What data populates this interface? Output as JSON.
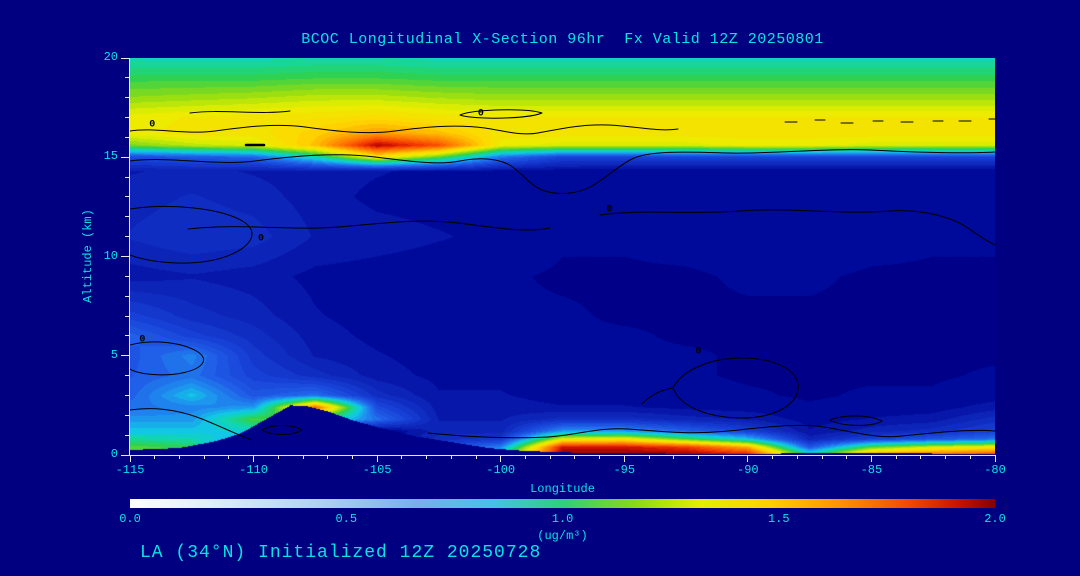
{
  "title": "BCOC Longitudinal X-Section 96hr  Fx Valid 12Z 20250801",
  "footer": "LA (34°N) Initialized 12Z 20250728",
  "axes": {
    "x": {
      "label": "Longitude",
      "ticks": [
        "-115",
        "-110",
        "-105",
        "-100",
        "-95",
        "-90",
        "-85",
        "-80"
      ],
      "minor_step": 1
    },
    "y": {
      "label": "Altitude (km)",
      "ticks": [
        "0",
        "5",
        "10",
        "15",
        "20"
      ],
      "minor_step": 1
    }
  },
  "colorbar": {
    "ticks": [
      "0.0",
      "0.5",
      "1.0",
      "1.5",
      "2.0"
    ],
    "unit": "(ug/m³)",
    "gradient": [
      [
        0,
        "#ffffff"
      ],
      [
        0.1,
        "#dcedfa"
      ],
      [
        0.22,
        "#aed2f2"
      ],
      [
        0.33,
        "#78b1e8"
      ],
      [
        0.42,
        "#46c2e4"
      ],
      [
        0.5,
        "#2fcf7c"
      ],
      [
        0.58,
        "#83da16"
      ],
      [
        0.66,
        "#e6ee00"
      ],
      [
        0.74,
        "#ffcf00"
      ],
      [
        0.82,
        "#ff9300"
      ],
      [
        0.9,
        "#f24a00"
      ],
      [
        0.96,
        "#c41200"
      ],
      [
        1,
        "#860000"
      ]
    ]
  },
  "colors": {
    "background": "#000080",
    "text": "#0ae2e2",
    "axis": "#e8e8e8",
    "contour": "#000000"
  },
  "chart_data": {
    "type": "heatmap",
    "title": "BCOC Longitudinal X-Section 96hr  Fx Valid 12Z 20250801",
    "xlabel": "Longitude",
    "ylabel": "Altitude (km)",
    "xlim": [
      -115,
      -80
    ],
    "ylim": [
      0,
      20
    ],
    "clim": [
      0,
      2
    ],
    "units": "ug/m³",
    "quantize": 0.05,
    "contour_level_label": "0",
    "colormap": [
      [
        0,
        "#000089"
      ],
      [
        0.05,
        "#000a9a"
      ],
      [
        0.15,
        "#0d24b8"
      ],
      [
        0.3,
        "#1740d6"
      ],
      [
        0.45,
        "#2060e8"
      ],
      [
        0.58,
        "#1f8ef0"
      ],
      [
        0.7,
        "#12c6e6"
      ],
      [
        0.82,
        "#10d8ac"
      ],
      [
        0.95,
        "#2ed152"
      ],
      [
        1.08,
        "#8fdc14"
      ],
      [
        1.22,
        "#e8ef00"
      ],
      [
        1.38,
        "#ffd800"
      ],
      [
        1.52,
        "#ffa400"
      ],
      [
        1.66,
        "#ff7000"
      ],
      [
        1.8,
        "#f23800"
      ],
      [
        1.9,
        "#cc0f00"
      ],
      [
        2,
        "#8c0000"
      ]
    ],
    "terrain": {
      "lon": [
        -115,
        -113,
        -111.5,
        -110.5,
        -109.5,
        -108.5,
        -107.8,
        -107,
        -106,
        -105,
        -103.5,
        -102,
        -100.5,
        -99,
        -97,
        -94,
        -91,
        -88,
        -86,
        -83,
        -80
      ],
      "height": [
        0.25,
        0.35,
        0.7,
        1.1,
        1.8,
        2.5,
        2.45,
        2.2,
        1.75,
        1.4,
        0.95,
        0.65,
        0.35,
        0.2,
        0.12,
        0.08,
        0.06,
        0.08,
        0.1,
        0.08,
        0.05
      ]
    },
    "grid": {
      "lon": [
        -115,
        -112.5,
        -110,
        -107.5,
        -105,
        -102.5,
        -100,
        -97.5,
        -95,
        -92.5,
        -90,
        -87.5,
        -85,
        -82.5,
        -80
      ],
      "alt": [
        0,
        0.4,
        0.8,
        1.2,
        1.8,
        2.4,
        3,
        4,
        5,
        6,
        7,
        9,
        11,
        13,
        14.3,
        15,
        15.6,
        16.2,
        17,
        18,
        19,
        20
      ],
      "values": [
        [
          0.95,
          1.0,
          0.0,
          0.0,
          0.0,
          0.45,
          0.85,
          2.0,
          2.0,
          2.0,
          1.9,
          0.9,
          1.6,
          1.7,
          1.8
        ],
        [
          1.0,
          0.95,
          0.0,
          0.0,
          0.0,
          0.3,
          0.55,
          1.9,
          1.9,
          1.8,
          1.5,
          0.4,
          1.0,
          1.2,
          1.3
        ],
        [
          0.85,
          0.8,
          0.6,
          0.0,
          0.0,
          0.2,
          0.25,
          1.25,
          1.3,
          1.0,
          0.7,
          0.15,
          0.3,
          0.4,
          0.5
        ],
        [
          0.7,
          0.7,
          0.75,
          0.0,
          0.0,
          0.15,
          0.15,
          0.6,
          0.6,
          0.45,
          0.3,
          0.08,
          0.15,
          0.2,
          0.3
        ],
        [
          0.6,
          0.6,
          1.0,
          0.9,
          0.5,
          0.12,
          0.12,
          0.2,
          0.2,
          0.15,
          0.12,
          0.05,
          0.08,
          0.1,
          0.2
        ],
        [
          0.5,
          0.55,
          0.6,
          1.7,
          0.35,
          0.1,
          0.1,
          0.08,
          0.08,
          0.06,
          0.05,
          0.03,
          0.04,
          0.05,
          0.1
        ],
        [
          0.45,
          0.7,
          0.4,
          0.5,
          0.2,
          0.08,
          0.08,
          0.05,
          0.05,
          0.04,
          0.03,
          0.02,
          0.03,
          0.03,
          0.05
        ],
        [
          0.42,
          0.5,
          0.3,
          0.2,
          0.1,
          0.06,
          0.06,
          0.04,
          0.04,
          0.03,
          0.02,
          0.02,
          0.02,
          0.02,
          0.03
        ],
        [
          0.4,
          0.55,
          0.25,
          0.12,
          0.08,
          0.05,
          0.05,
          0.04,
          0.03,
          0.03,
          0.02,
          0.02,
          0.02,
          0.02,
          0.02
        ],
        [
          0.45,
          0.3,
          0.2,
          0.1,
          0.06,
          0.04,
          0.04,
          0.03,
          0.03,
          0.02,
          0.02,
          0.02,
          0.02,
          0.02,
          0.02
        ],
        [
          0.3,
          0.2,
          0.15,
          0.08,
          0.05,
          0.04,
          0.03,
          0.03,
          0.02,
          0.02,
          0.02,
          0.02,
          0.02,
          0.02,
          0.02
        ],
        [
          0.1,
          0.12,
          0.1,
          0.06,
          0.05,
          0.04,
          0.03,
          0.02,
          0.02,
          0.02,
          0.03,
          0.03,
          0.02,
          0.02,
          0.02
        ],
        [
          0.18,
          0.22,
          0.2,
          0.12,
          0.1,
          0.08,
          0.06,
          0.03,
          0.03,
          0.04,
          0.05,
          0.05,
          0.04,
          0.03,
          0.03
        ],
        [
          0.15,
          0.18,
          0.15,
          0.1,
          0.06,
          0.05,
          0.04,
          0.03,
          0.03,
          0.04,
          0.05,
          0.04,
          0.03,
          0.03,
          0.03
        ],
        [
          0.12,
          0.14,
          0.12,
          0.1,
          0.08,
          0.06,
          0.05,
          0.04,
          0.03,
          0.03,
          0.03,
          0.03,
          0.03,
          0.03,
          0.03
        ],
        [
          0.35,
          0.4,
          0.45,
          0.8,
          1.3,
          1.0,
          0.5,
          0.3,
          0.3,
          0.3,
          0.3,
          0.3,
          0.3,
          0.3,
          0.3
        ],
        [
          1.05,
          1.15,
          1.2,
          1.45,
          1.95,
          1.75,
          1.25,
          1.2,
          1.2,
          1.2,
          1.25,
          1.25,
          1.2,
          1.2,
          1.2
        ],
        [
          1.25,
          1.3,
          1.3,
          1.4,
          1.55,
          1.45,
          1.3,
          1.3,
          1.3,
          1.3,
          1.3,
          1.3,
          1.3,
          1.3,
          1.3
        ],
        [
          1.25,
          1.28,
          1.3,
          1.32,
          1.35,
          1.3,
          1.28,
          1.28,
          1.28,
          1.28,
          1.28,
          1.28,
          1.28,
          1.28,
          1.28
        ],
        [
          1.08,
          1.1,
          1.12,
          1.15,
          1.15,
          1.12,
          1.1,
          1.1,
          1.1,
          1.1,
          1.1,
          1.1,
          1.1,
          1.1,
          1.1
        ],
        [
          0.95,
          0.95,
          0.95,
          0.97,
          0.97,
          0.95,
          0.95,
          0.95,
          0.95,
          0.95,
          0.95,
          0.95,
          0.95,
          0.95,
          0.95
        ],
        [
          0.8,
          0.8,
          0.8,
          0.82,
          0.82,
          0.8,
          0.8,
          0.8,
          0.8,
          0.8,
          0.8,
          0.8,
          0.8,
          0.8,
          0.8
        ]
      ]
    },
    "contour_labels": [
      {
        "lon": -114.1,
        "alt": 16.6,
        "text": "0"
      },
      {
        "lon": -100.8,
        "alt": 17.2,
        "text": "0"
      },
      {
        "lon": -109.7,
        "alt": 10.9,
        "text": "0"
      },
      {
        "lon": -95.6,
        "alt": 12.35,
        "text": "0"
      },
      {
        "lon": -92.0,
        "alt": 5.2,
        "text": "0"
      },
      {
        "lon": -114.5,
        "alt": 5.8,
        "text": "0"
      }
    ]
  }
}
